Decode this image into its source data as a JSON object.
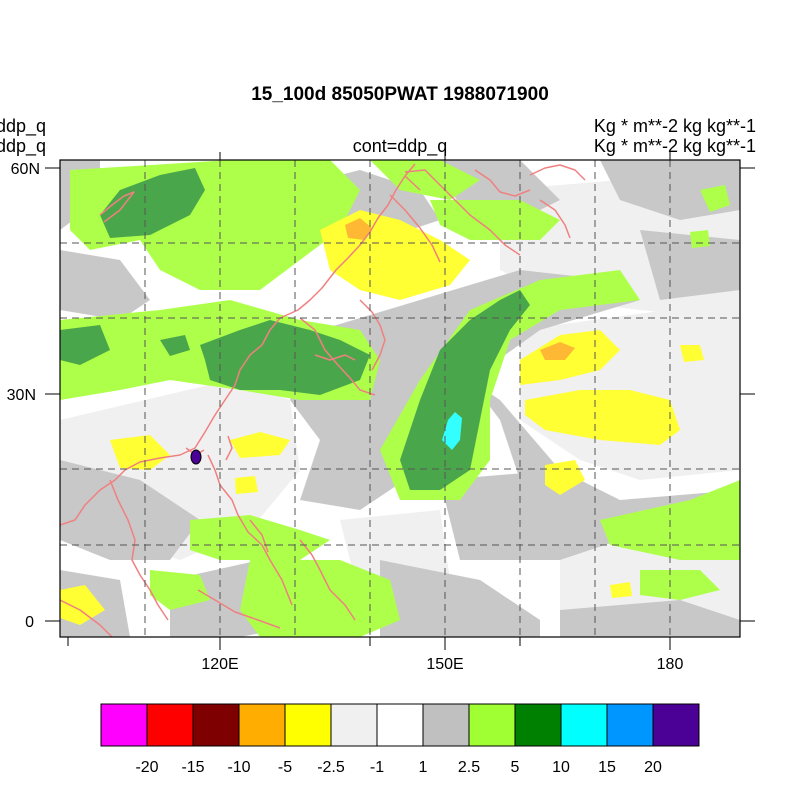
{
  "title": "15_100d 85050PWAT  1988071900",
  "left_labels": [
    "ddp_q",
    "ddp_q"
  ],
  "center_label": "cont=ddp_q",
  "right_labels": [
    "Kg  * m**-2 kg kg**-1",
    "Kg  * m**-2 kg kg**-1"
  ],
  "lat_ticks": [
    "60N",
    "30N",
    "0"
  ],
  "lon_ticks": [
    "120E",
    "150E",
    "180"
  ],
  "colorbar": {
    "colors": [
      "#ff00ff",
      "#ff0000",
      "#7f0000",
      "#ffad00",
      "#ffff00",
      "#f0f0f0",
      "#ffffff",
      "#c0c0c0",
      "#a0ff32",
      "#008000",
      "#00ffff",
      "#0096ff",
      "#4b0096"
    ],
    "labels": [
      "-20",
      "-15",
      "-10",
      "-5",
      "-2.5",
      "-1",
      "1",
      "2.5",
      "5",
      "10",
      "15",
      "20"
    ]
  },
  "map_colors": {
    "coastline": "#f08080",
    "light_gray": "#f0f0f0",
    "gray": "#c8c8c8",
    "light_green": "#adff4a",
    "green": "#4aa64a",
    "yellow": "#ffff33",
    "orange": "#ffb833",
    "cyan": "#33ffff",
    "purple": "#4b0096"
  }
}
